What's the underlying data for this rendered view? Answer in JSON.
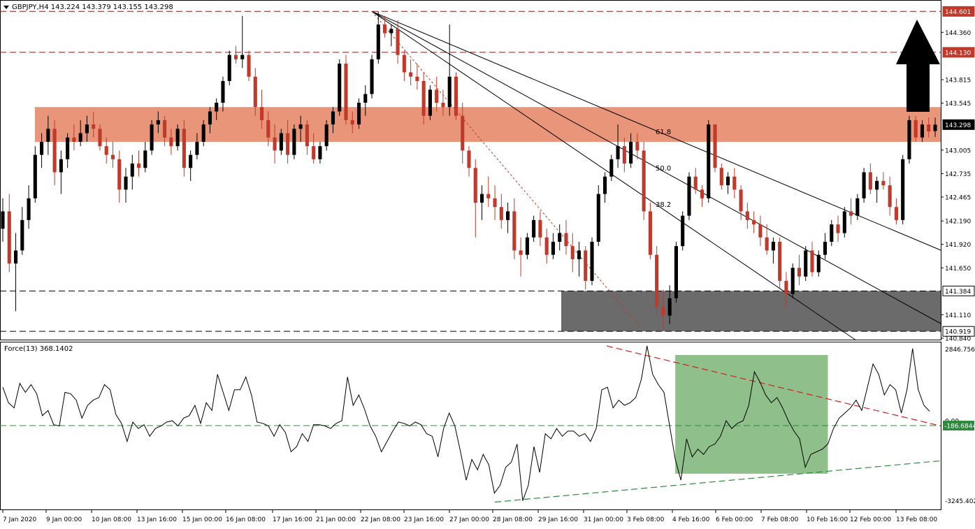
{
  "header": {
    "symbol_line": "GBPJPY,H4  143.224 143.379 143.155 143.298"
  },
  "colors": {
    "bull": "#000000",
    "bear": "#c0392b",
    "resistance_zone": "#e8957a",
    "support_zone": "#6b6b6b",
    "force_zone": "#8fbf8a",
    "price_tag": "#c0392b",
    "force_tag": "#2e8b3e",
    "fib_line": "#000000",
    "level_line": "#8b1a1a"
  },
  "chart_data": [
    {
      "type": "candlestick",
      "title": "",
      "symbol": "GBPJPY",
      "timeframe": "H4",
      "ohlc_current": [
        143.224,
        143.379,
        143.155,
        143.298
      ],
      "ylim": [
        140.84,
        144.7
      ],
      "y_ticks": [
        144.36,
        143.815,
        143.545,
        143.005,
        142.735,
        142.465,
        142.19,
        141.92,
        141.65,
        141.11,
        140.84
      ],
      "price_tags": [
        {
          "value": 144.601,
          "label": "144.601",
          "color": "#c0392b"
        },
        {
          "value": 144.13,
          "label": "144.130",
          "color": "#c0392b"
        },
        {
          "value": 143.298,
          "label": "143.298",
          "color": "#000000"
        },
        {
          "value": 141.384,
          "label": "141.384",
          "color": "#ffffff"
        },
        {
          "value": 140.919,
          "label": "140.919",
          "color": "#ffffff"
        }
      ],
      "x_labels": [
        "7 Jan 2020",
        "9 Jan 00:00",
        "10 Jan 08:00",
        "13 Jan 16:00",
        "15 Jan 00:00",
        "16 Jan 08:00",
        "17 Jan 16:00",
        "21 Jan 00:00",
        "22 Jan 08:00",
        "23 Jan 16:00",
        "27 Jan 00:00",
        "28 Jan 08:00",
        "29 Jan 16:00",
        "31 Jan 00:00",
        "3 Feb 08:00",
        "4 Feb 16:00",
        "6 Feb 00:00",
        "7 Feb 08:00",
        "10 Feb 16:00",
        "12 Feb 00:00",
        "13 Feb 08:00"
      ],
      "resistance_zone": [
        143.1,
        143.5
      ],
      "support_zone": [
        140.919,
        141.384
      ],
      "horizontal_levels": [
        144.601,
        144.13,
        141.384,
        140.919
      ],
      "fib_labels": [
        "61.8",
        "50.0",
        "38.2"
      ],
      "candles": [
        [
          142.1,
          142.45,
          141.95,
          142.3
        ],
        [
          142.3,
          142.5,
          141.6,
          141.7
        ],
        [
          141.7,
          142.05,
          141.15,
          141.85
        ],
        [
          141.85,
          142.35,
          141.8,
          142.2
        ],
        [
          142.2,
          142.6,
          142.1,
          142.45
        ],
        [
          142.45,
          143.05,
          142.4,
          142.95
        ],
        [
          142.95,
          143.2,
          142.8,
          143.1
        ],
        [
          143.1,
          143.4,
          142.95,
          143.25
        ],
        [
          143.25,
          143.35,
          142.6,
          142.75
        ],
        [
          142.75,
          143.0,
          142.5,
          142.9
        ],
        [
          142.9,
          143.2,
          142.8,
          143.15
        ],
        [
          143.15,
          143.3,
          143.0,
          143.1
        ],
        [
          143.1,
          143.35,
          143.05,
          143.2
        ],
        [
          143.2,
          143.4,
          143.1,
          143.3
        ],
        [
          143.3,
          143.45,
          143.15,
          143.25
        ],
        [
          143.25,
          143.3,
          143.0,
          143.05
        ],
        [
          143.05,
          143.15,
          142.85,
          142.95
        ],
        [
          142.95,
          143.1,
          142.8,
          142.9
        ],
        [
          142.9,
          143.0,
          142.4,
          142.55
        ],
        [
          142.55,
          142.8,
          142.4,
          142.7
        ],
        [
          142.7,
          142.95,
          142.55,
          142.85
        ],
        [
          142.85,
          143.0,
          142.7,
          142.8
        ],
        [
          142.8,
          143.1,
          142.75,
          143.0
        ],
        [
          143.0,
          143.35,
          142.95,
          143.3
        ],
        [
          143.3,
          143.45,
          143.2,
          143.35
        ],
        [
          143.35,
          143.4,
          143.05,
          143.15
        ],
        [
          143.15,
          143.25,
          142.95,
          143.05
        ],
        [
          143.05,
          143.3,
          143.0,
          143.25
        ],
        [
          143.25,
          143.35,
          142.7,
          142.8
        ],
        [
          142.8,
          143.0,
          142.65,
          142.95
        ],
        [
          142.95,
          143.2,
          142.9,
          143.1
        ],
        [
          143.1,
          143.35,
          143.05,
          143.3
        ],
        [
          143.3,
          143.5,
          143.2,
          143.45
        ],
        [
          143.45,
          143.6,
          143.35,
          143.55
        ],
        [
          143.55,
          143.85,
          143.45,
          143.8
        ],
        [
          143.8,
          144.15,
          143.75,
          144.1
        ],
        [
          144.1,
          144.2,
          144.0,
          144.05
        ],
        [
          144.05,
          144.55,
          143.95,
          144.1
        ],
        [
          144.1,
          144.15,
          143.8,
          143.85
        ],
        [
          143.85,
          143.95,
          143.4,
          143.5
        ],
        [
          143.5,
          143.7,
          143.25,
          143.35
        ],
        [
          143.35,
          143.45,
          143.05,
          143.15
        ],
        [
          143.15,
          143.3,
          142.85,
          143.0
        ],
        [
          143.0,
          143.25,
          142.95,
          143.2
        ],
        [
          143.2,
          143.35,
          142.85,
          142.95
        ],
        [
          142.95,
          143.3,
          142.9,
          143.25
        ],
        [
          143.25,
          143.4,
          143.1,
          143.3
        ],
        [
          143.3,
          143.35,
          142.95,
          143.05
        ],
        [
          143.05,
          143.2,
          142.85,
          142.9
        ],
        [
          142.9,
          143.1,
          142.85,
          143.05
        ],
        [
          143.05,
          143.35,
          143.0,
          143.3
        ],
        [
          143.3,
          143.5,
          143.2,
          143.45
        ],
        [
          143.45,
          144.05,
          143.4,
          144.0
        ],
        [
          144.0,
          144.1,
          143.3,
          143.35
        ],
        [
          143.35,
          143.45,
          143.2,
          143.3
        ],
        [
          143.3,
          143.6,
          143.25,
          143.55
        ],
        [
          143.55,
          143.75,
          143.4,
          143.65
        ],
        [
          143.65,
          144.1,
          143.6,
          144.05
        ],
        [
          144.05,
          144.6,
          144.0,
          144.45
        ],
        [
          144.45,
          144.55,
          144.3,
          144.35
        ],
        [
          144.35,
          144.45,
          144.2,
          144.4
        ],
        [
          144.4,
          144.5,
          144.0,
          144.1
        ],
        [
          144.1,
          144.15,
          143.8,
          143.9
        ],
        [
          143.9,
          144.05,
          143.75,
          143.85
        ],
        [
          143.85,
          144.0,
          143.7,
          143.8
        ],
        [
          143.8,
          143.9,
          143.3,
          143.4
        ],
        [
          143.4,
          143.75,
          143.35,
          143.7
        ],
        [
          143.7,
          143.85,
          143.45,
          143.55
        ],
        [
          143.55,
          143.7,
          143.4,
          143.5
        ],
        [
          143.5,
          144.45,
          143.4,
          143.85
        ],
        [
          143.85,
          143.9,
          143.35,
          143.4
        ],
        [
          143.4,
          143.55,
          142.85,
          143.0
        ],
        [
          143.0,
          143.05,
          142.7,
          142.8
        ],
        [
          142.8,
          142.9,
          142.0,
          142.4
        ],
        [
          142.4,
          142.6,
          142.2,
          142.5
        ],
        [
          142.5,
          142.7,
          142.35,
          142.45
        ],
        [
          142.45,
          142.6,
          142.2,
          142.35
        ],
        [
          142.35,
          142.5,
          142.1,
          142.2
        ],
        [
          142.2,
          142.4,
          142.05,
          142.3
        ],
        [
          142.3,
          142.45,
          141.75,
          141.85
        ],
        [
          141.85,
          142.0,
          141.55,
          141.8
        ],
        [
          141.8,
          142.05,
          141.75,
          142.0
        ],
        [
          142.0,
          142.25,
          141.95,
          142.2
        ],
        [
          142.2,
          142.3,
          141.9,
          142.0
        ],
        [
          142.0,
          142.1,
          141.7,
          141.8
        ],
        [
          141.8,
          142.05,
          141.75,
          141.95
        ],
        [
          141.95,
          142.15,
          141.85,
          142.05
        ],
        [
          142.05,
          142.2,
          141.8,
          141.9
        ],
        [
          141.9,
          142.05,
          141.6,
          141.75
        ],
        [
          141.75,
          141.95,
          141.55,
          141.85
        ],
        [
          141.85,
          141.9,
          141.4,
          141.5
        ],
        [
          141.5,
          142.0,
          141.45,
          141.95
        ],
        [
          141.95,
          142.6,
          141.9,
          142.5
        ],
        [
          142.5,
          142.75,
          142.4,
          142.7
        ],
        [
          142.7,
          142.95,
          142.65,
          142.9
        ],
        [
          142.9,
          143.3,
          142.8,
          143.05
        ],
        [
          143.05,
          143.15,
          142.75,
          142.85
        ],
        [
          142.85,
          143.2,
          142.8,
          143.1
        ],
        [
          143.1,
          143.2,
          142.9,
          143.0
        ],
        [
          143.0,
          143.1,
          142.2,
          142.3
        ],
        [
          142.3,
          142.4,
          141.75,
          141.8
        ],
        [
          141.8,
          141.9,
          141.1,
          141.2
        ],
        [
          141.2,
          141.4,
          140.95,
          141.1
        ],
        [
          141.1,
          141.45,
          141.0,
          141.3
        ],
        [
          141.3,
          141.95,
          141.25,
          141.9
        ],
        [
          141.9,
          142.3,
          141.85,
          142.25
        ],
        [
          142.25,
          142.75,
          142.2,
          142.7
        ],
        [
          142.7,
          142.8,
          142.5,
          142.55
        ],
        [
          142.55,
          142.6,
          142.35,
          142.45
        ],
        [
          142.45,
          143.35,
          142.4,
          143.3
        ],
        [
          143.3,
          143.3,
          142.75,
          142.8
        ],
        [
          142.8,
          142.85,
          142.55,
          142.6
        ],
        [
          142.6,
          142.75,
          142.5,
          142.7
        ],
        [
          142.7,
          142.8,
          142.45,
          142.55
        ],
        [
          142.55,
          142.6,
          142.2,
          142.3
        ],
        [
          142.3,
          142.4,
          142.1,
          142.2
        ],
        [
          142.2,
          142.3,
          142.05,
          142.15
        ],
        [
          142.15,
          142.25,
          141.9,
          142.0
        ],
        [
          142.0,
          142.15,
          141.8,
          141.85
        ],
        [
          141.85,
          142.0,
          141.7,
          141.95
        ],
        [
          141.95,
          142.0,
          141.4,
          141.5
        ],
        [
          141.5,
          141.6,
          141.2,
          141.35
        ],
        [
          141.35,
          141.7,
          141.3,
          141.65
        ],
        [
          141.65,
          141.8,
          141.45,
          141.55
        ],
        [
          141.55,
          141.9,
          141.5,
          141.85
        ],
        [
          141.85,
          141.95,
          141.55,
          141.6
        ],
        [
          141.6,
          141.85,
          141.55,
          141.8
        ],
        [
          141.8,
          142.05,
          141.75,
          141.95
        ],
        [
          141.95,
          142.2,
          141.9,
          142.15
        ],
        [
          142.15,
          142.25,
          141.95,
          142.05
        ],
        [
          142.05,
          142.35,
          142.0,
          142.3
        ],
        [
          142.3,
          142.45,
          142.15,
          142.25
        ],
        [
          142.25,
          142.5,
          142.2,
          142.45
        ],
        [
          142.45,
          142.8,
          142.4,
          142.75
        ],
        [
          142.75,
          142.85,
          142.5,
          142.55
        ],
        [
          142.55,
          142.7,
          142.4,
          142.65
        ],
        [
          142.65,
          142.75,
          142.55,
          142.6
        ],
        [
          142.6,
          142.7,
          142.25,
          142.35
        ],
        [
          142.35,
          142.45,
          142.15,
          142.2
        ],
        [
          142.2,
          142.95,
          142.15,
          142.9
        ],
        [
          142.9,
          143.4,
          142.85,
          143.35
        ],
        [
          143.35,
          143.4,
          143.1,
          143.15
        ],
        [
          143.15,
          143.35,
          143.1,
          143.3
        ],
        [
          143.3,
          143.38,
          143.15,
          143.22
        ],
        [
          143.224,
          143.379,
          143.155,
          143.298
        ]
      ]
    },
    {
      "type": "line",
      "title": "Force(13) 368.1402",
      "ylim": [
        -3245.4028,
        2846.7567
      ],
      "y_ticks": [
        2846.7567,
        0.0,
        -3245.4028
      ],
      "y_tick_labels": [
        "2846.7567",
        "0.00",
        "-3245.4028"
      ],
      "level": {
        "value": -186.6844,
        "label": "-186.6844"
      },
      "values": [
        1300,
        700,
        500,
        1450,
        1100,
        1400,
        1050,
        200,
        400,
        -150,
        -200,
        1100,
        1050,
        800,
        100,
        600,
        800,
        900,
        1400,
        1200,
        250,
        -100,
        -800,
        -50,
        -300,
        -150,
        -600,
        -300,
        -200,
        -50,
        0,
        -200,
        100,
        200,
        600,
        -100,
        700,
        400,
        1800,
        1100,
        400,
        1200,
        1200,
        1700,
        1000,
        -50,
        -100,
        -200,
        -600,
        -150,
        -450,
        -1200,
        -1000,
        -500,
        -800,
        -150,
        -150,
        -200,
        -300,
        -100,
        0,
        1700,
        600,
        1000,
        450,
        -200,
        -600,
        -1200,
        -800,
        -400,
        -50,
        -100,
        -200,
        -50,
        -150,
        -500,
        -600,
        -1400,
        -300,
        300,
        -200,
        -1200,
        -2300,
        -1500,
        -1900,
        -1300,
        -1700,
        -2800,
        -2500,
        -1800,
        -1600,
        -900,
        -3100,
        -2500,
        -1000,
        -2000,
        -500,
        -700,
        -300,
        -600,
        -400,
        -400,
        -600,
        -500,
        -800,
        -300,
        1200,
        1300,
        500,
        800,
        600,
        700,
        900,
        1600,
        2900,
        1800,
        1400,
        1100,
        -200,
        -1500,
        -2300,
        -700,
        -1400,
        -1100,
        -1300,
        -1000,
        -900,
        -600,
        0,
        -300,
        -100,
        0,
        600,
        1900,
        1500,
        1000,
        700,
        900,
        500,
        0,
        -400,
        -700,
        -1800,
        -1300,
        -1200,
        -1100,
        -900,
        -300,
        100,
        300,
        500,
        800,
        400,
        1300,
        2200,
        1800,
        1000,
        1400,
        1200,
        300,
        1200,
        2800,
        1200,
        600,
        368.1402
      ],
      "zone": {
        "y_from": -2050,
        "y_to": 2550,
        "x_from": 119,
        "x_to": 146
      }
    }
  ]
}
